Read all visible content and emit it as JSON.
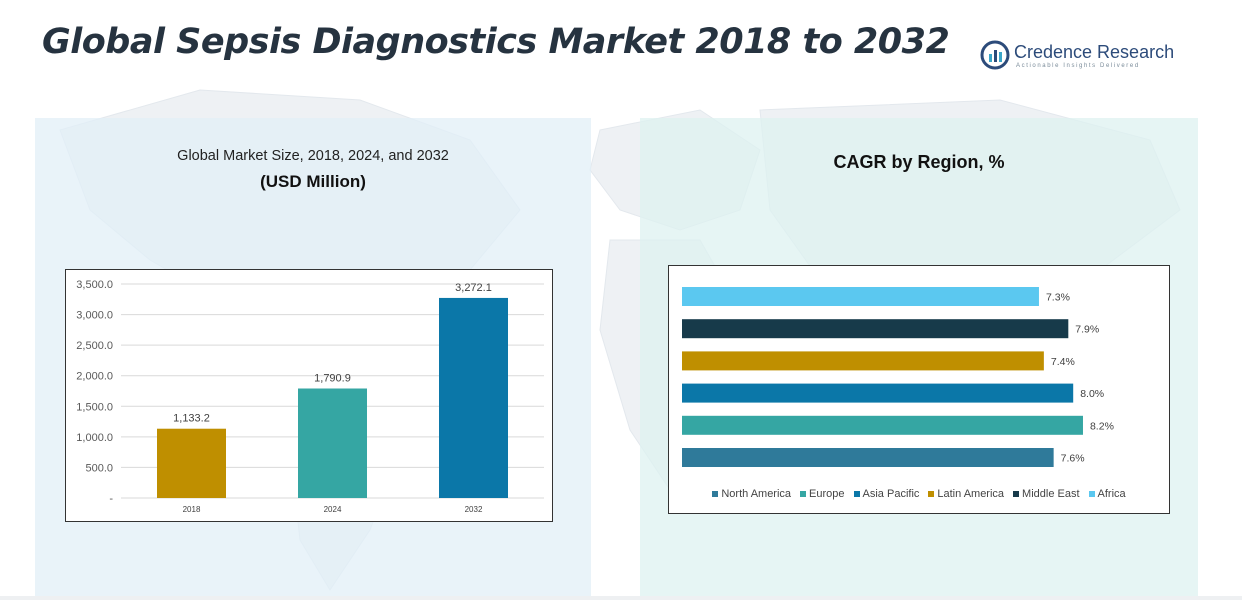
{
  "header": {
    "title": "Global Sepsis Diagnostics Market 2018 to 2032",
    "logo_name": "Credence Research",
    "logo_tagline": "Actionable Insights Delivered"
  },
  "colors": {
    "title": "#263340",
    "panel_left": "#e2eff7",
    "panel_right": "#def2f0"
  },
  "left_panel": {
    "title": "Global Market Size, 2018, 2024, and 2032",
    "subtitle": "(USD Million)"
  },
  "right_panel": {
    "title": "CAGR by Region, %"
  },
  "chart_data": [
    {
      "type": "bar",
      "title": "Global Market Size, 2018, 2024, and 2032",
      "subtitle": "(USD Million)",
      "categories": [
        "2018",
        "2024",
        "2032"
      ],
      "values": [
        1133.2,
        1790.9,
        3272.1
      ],
      "value_labels": [
        "1,133.2",
        "1,790.9",
        "3,272.1"
      ],
      "colors": [
        "#bf8f00",
        "#35a6a3",
        "#0b77a8"
      ],
      "ylim": [
        0,
        3500
      ],
      "yticks": [
        0,
        500,
        1000,
        1500,
        2000,
        2500,
        3000,
        3500
      ],
      "ytick_labels": [
        "-",
        "500.0",
        "1,000.0",
        "1,500.0",
        "2,000.0",
        "2,500.0",
        "3,000.0",
        "3,500.0"
      ],
      "grid": true
    },
    {
      "type": "bar",
      "orientation": "horizontal",
      "title": "CAGR by Region, %",
      "categories": [
        "Africa",
        "Middle East",
        "Latin America",
        "Asia Pacific",
        "Europe",
        "North America"
      ],
      "values": [
        7.3,
        7.9,
        7.4,
        8.0,
        8.2,
        7.6
      ],
      "value_labels": [
        "7.3%",
        "7.9%",
        "7.4%",
        "8.0%",
        "8.2%",
        "7.6%"
      ],
      "colors": [
        "#5bc8f0",
        "#173a4a",
        "#bf8f00",
        "#0b77a8",
        "#35a6a3",
        "#2f7a9a"
      ],
      "legend": [
        "North America",
        "Europe",
        "Asia Pacific",
        "Latin America",
        "Middle East",
        "Africa"
      ],
      "legend_colors": [
        "#2f7a9a",
        "#35a6a3",
        "#0b77a8",
        "#bf8f00",
        "#173a4a",
        "#5bc8f0"
      ],
      "legend_position": "bottom",
      "grid": false
    }
  ]
}
